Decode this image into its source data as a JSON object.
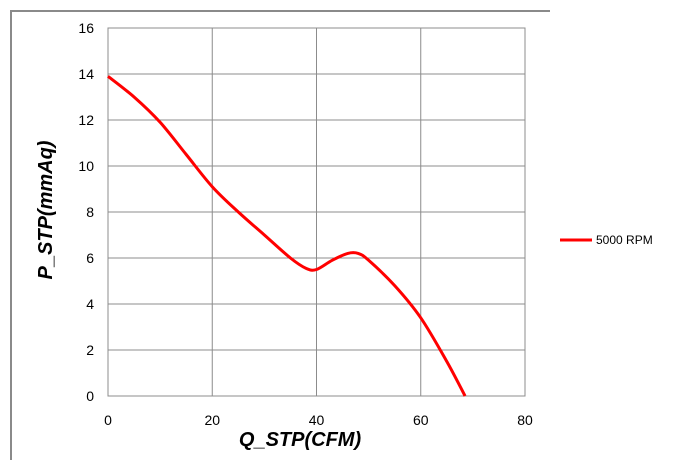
{
  "chart_data": {
    "type": "line",
    "xlabel": "Q_STP(CFM)",
    "ylabel": "P_STP(mmAq)",
    "xlim": [
      0,
      80
    ],
    "ylim": [
      0,
      16
    ],
    "xticks": [
      0,
      20,
      40,
      60,
      80
    ],
    "yticks": [
      0,
      2,
      4,
      6,
      8,
      10,
      12,
      14,
      16
    ],
    "grid": true,
    "legend_position": "right",
    "series": [
      {
        "name": "5000 RPM",
        "color": "#ff0000",
        "x": [
          0,
          5,
          10,
          15,
          20,
          25,
          30,
          35,
          38,
          40,
          43,
          46,
          48,
          50,
          55,
          60,
          65,
          68.5
        ],
        "y": [
          13.9,
          13.0,
          11.9,
          10.5,
          9.1,
          8.0,
          7.0,
          6.0,
          5.55,
          5.5,
          5.9,
          6.2,
          6.2,
          5.9,
          4.8,
          3.4,
          1.5,
          0
        ]
      }
    ]
  }
}
